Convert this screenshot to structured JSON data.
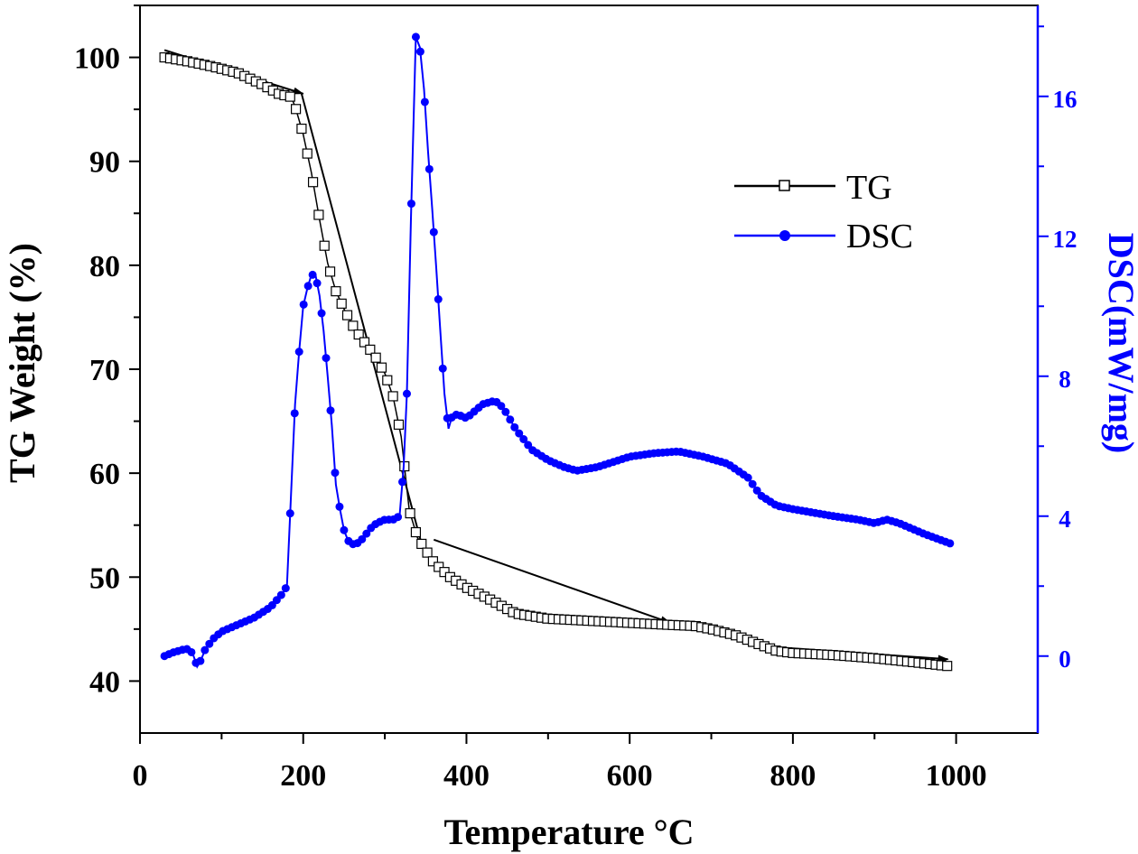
{
  "chart_data": {
    "type": "line",
    "xlabel": "Temperature °C",
    "ylabel_left": "TG Weight (%)",
    "ylabel_right": "DSC(mW/mg)",
    "xlim": [
      0,
      1100
    ],
    "ylim_left": [
      35,
      105
    ],
    "ylim_right": [
      -2.2,
      18.6
    ],
    "x_ticks": [
      "0",
      "200",
      "400",
      "600",
      "800",
      "1000"
    ],
    "y_left_ticks": [
      "40",
      "50",
      "60",
      "70",
      "80",
      "90",
      "100"
    ],
    "y_right_ticks": [
      "0",
      "4",
      "8",
      "12",
      "16"
    ],
    "grid": false,
    "legend_position": "top-right",
    "colors": {
      "TG": "#000000",
      "DSC": "#0000ff",
      "right_axis": "#0000ff"
    },
    "series": [
      {
        "name": "TG",
        "axis": "left",
        "marker": "open-square",
        "x": [
          30,
          60,
          90,
          120,
          150,
          170,
          185,
          190,
          200,
          210,
          220,
          230,
          240,
          250,
          260,
          270,
          280,
          290,
          300,
          310,
          320,
          330,
          340,
          350,
          360,
          380,
          400,
          430,
          460,
          500,
          550,
          600,
          650,
          680,
          700,
          730,
          760,
          780,
          800,
          850,
          900,
          950,
          995
        ],
        "y": [
          100,
          99.6,
          99.1,
          98.5,
          97.4,
          96.5,
          96.2,
          95.3,
          92.6,
          88.9,
          84.4,
          80.2,
          77.5,
          75.8,
          74.3,
          73.1,
          72.1,
          71.0,
          69.6,
          67.4,
          63.5,
          56.4,
          53.8,
          52.6,
          51.4,
          50.0,
          49.0,
          47.8,
          46.5,
          46.0,
          45.8,
          45.6,
          45.4,
          45.3,
          45.0,
          44.4,
          43.5,
          42.9,
          42.7,
          42.5,
          42.2,
          41.8,
          41.4
        ]
      },
      {
        "name": "DSC",
        "axis": "right",
        "marker": "filled-circle",
        "x": [
          30,
          40,
          55,
          60,
          65,
          70,
          75,
          80,
          90,
          100,
          120,
          140,
          160,
          175,
          180,
          185,
          190,
          195,
          200,
          205,
          210,
          215,
          220,
          225,
          230,
          235,
          240,
          245,
          250,
          255,
          260,
          265,
          270,
          275,
          280,
          290,
          300,
          310,
          318,
          323,
          327,
          332,
          338,
          343,
          348,
          353,
          358,
          363,
          368,
          373,
          378,
          383,
          390,
          400,
          420,
          435,
          445,
          460,
          480,
          500,
          520,
          535,
          560,
          600,
          630,
          660,
          690,
          720,
          745,
          760,
          780,
          800,
          850,
          880,
          900,
          915,
          930,
          960,
          995
        ],
        "y": [
          0,
          0.1,
          0.2,
          0.2,
          0.05,
          -0.3,
          -0.1,
          0.2,
          0.5,
          0.7,
          0.9,
          1.1,
          1.4,
          1.8,
          2.0,
          4.6,
          7.2,
          8.7,
          10.0,
          10.5,
          10.9,
          10.9,
          10.3,
          9.3,
          8.0,
          6.6,
          4.9,
          4.2,
          3.6,
          3.3,
          3.2,
          3.2,
          3.3,
          3.4,
          3.6,
          3.8,
          3.9,
          3.9,
          4.0,
          5.4,
          7.5,
          12.5,
          17.7,
          17.4,
          16.2,
          14.4,
          12.8,
          11.1,
          9.3,
          7.5,
          6.5,
          6.9,
          6.9,
          6.8,
          7.2,
          7.3,
          7.1,
          6.5,
          5.9,
          5.6,
          5.4,
          5.3,
          5.4,
          5.7,
          5.8,
          5.85,
          5.7,
          5.5,
          5.1,
          4.6,
          4.3,
          4.2,
          4.0,
          3.9,
          3.8,
          3.9,
          3.8,
          3.5,
          3.2
        ]
      }
    ],
    "annotations": [
      {
        "type": "arrow",
        "axis": "left",
        "from": [
          30,
          100.7
        ],
        "to": [
          200,
          96.5
        ]
      },
      {
        "type": "line",
        "axis": "left",
        "from": [
          198,
          96.5
        ],
        "to": [
          345,
          53.2
        ]
      },
      {
        "type": "arrow",
        "axis": "left",
        "from": [
          360,
          53.6
        ],
        "to": [
          650,
          45.6
        ]
      },
      {
        "type": "arrow",
        "axis": "left",
        "from": [
          650,
          45.6
        ],
        "to": [
          780,
          43.2
        ]
      },
      {
        "type": "arrow",
        "axis": "left",
        "from": [
          790,
          43.2
        ],
        "to": [
          990,
          42.1
        ]
      }
    ]
  },
  "legend": [
    {
      "label": "TG"
    },
    {
      "label": "DSC"
    }
  ]
}
